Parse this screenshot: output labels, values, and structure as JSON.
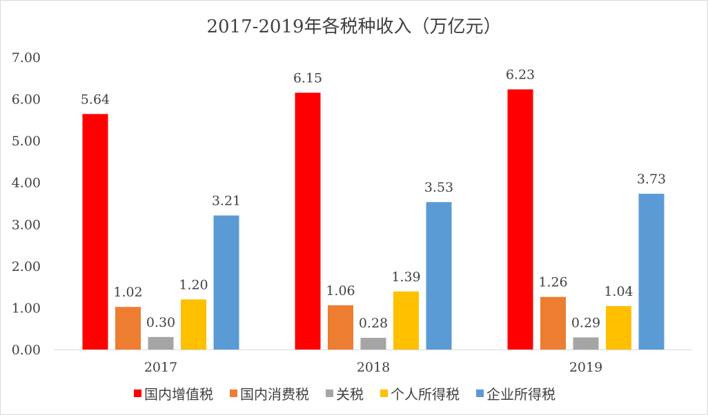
{
  "chart_data": {
    "type": "bar",
    "title": "2017-2019年各税种收入（万亿元）",
    "xlabel": "",
    "ylabel": "",
    "categories": [
      "2017",
      "2018",
      "2019"
    ],
    "ylim": [
      0,
      7
    ],
    "yticks": [
      "0.00",
      "1.00",
      "2.00",
      "3.00",
      "4.00",
      "5.00",
      "6.00",
      "7.00"
    ],
    "grid": false,
    "legend_position": "bottom",
    "series": [
      {
        "name": "国内增值税",
        "color": "#ff0000",
        "values": [
          5.64,
          6.15,
          6.23
        ],
        "labels": [
          "5.64",
          "6.15",
          "6.23"
        ]
      },
      {
        "name": "国内消费税",
        "color": "#ed7d31",
        "values": [
          1.02,
          1.06,
          1.26
        ],
        "labels": [
          "1.02",
          "1.06",
          "1.26"
        ]
      },
      {
        "name": "关税",
        "color": "#a5a5a5",
        "values": [
          0.3,
          0.28,
          0.29
        ],
        "labels": [
          "0.30",
          "0.28",
          "0.29"
        ]
      },
      {
        "name": "个人所得税",
        "color": "#ffc000",
        "values": [
          1.2,
          1.39,
          1.04
        ],
        "labels": [
          "1.20",
          "1.39",
          "1.04"
        ]
      },
      {
        "name": "企业所得税",
        "color": "#5b9bd5",
        "values": [
          3.21,
          3.53,
          3.73
        ],
        "labels": [
          "3.21",
          "3.53",
          "3.73"
        ]
      }
    ]
  }
}
